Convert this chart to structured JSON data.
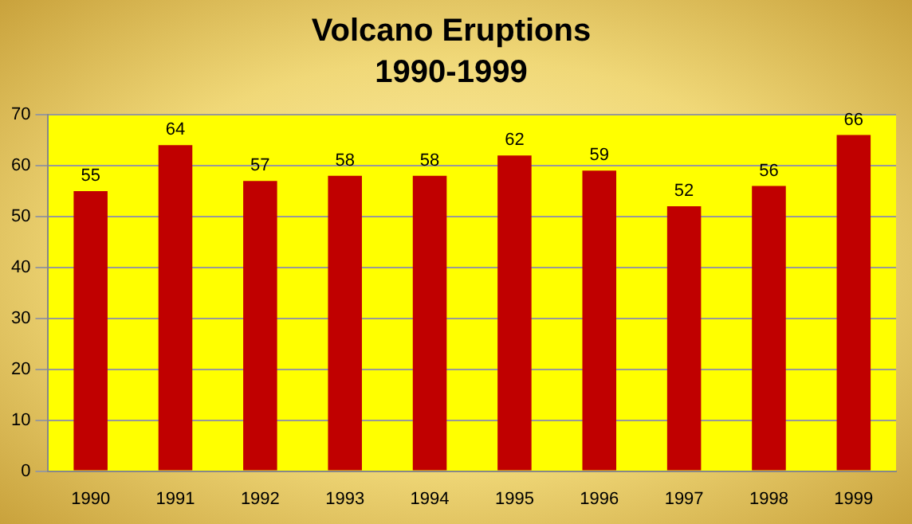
{
  "chart_data": {
    "type": "bar",
    "title": "Volcano Eruptions",
    "subtitle": "1990-1999",
    "categories": [
      "1990",
      "1991",
      "1992",
      "1993",
      "1994",
      "1995",
      "1996",
      "1997",
      "1998",
      "1999"
    ],
    "values": [
      55,
      64,
      57,
      58,
      58,
      62,
      59,
      52,
      56,
      66
    ],
    "color": "#c00000",
    "ylim": [
      0,
      70
    ],
    "yticks": [
      0,
      10,
      20,
      30,
      40,
      50,
      60,
      70
    ],
    "grid": "y",
    "data_labels": true,
    "legend": false
  }
}
